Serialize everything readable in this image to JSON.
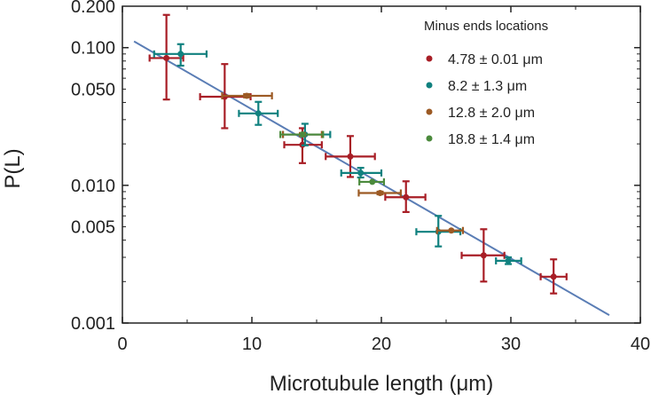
{
  "chart_data": {
    "type": "scatter",
    "xlabel": "Microtubule length (μm)",
    "ylabel": "P(L)",
    "xlim": [
      0,
      40
    ],
    "ylim": [
      0.001,
      0.2
    ],
    "yscale": "log",
    "grid": false,
    "x_ticks": [
      "0",
      "10",
      "20",
      "30",
      "40"
    ],
    "y_ticks": [
      "0.001",
      "0.005",
      "0.010",
      "0.050",
      "0.100",
      "0.200"
    ],
    "legend": {
      "title": "Minus ends locations",
      "placement": "top-right"
    },
    "series": [
      {
        "name": "4.78 ± 0.01 μm",
        "color": "#a81e26",
        "points": [
          {
            "x": 3.4,
            "y": 0.084,
            "xerr": [
              2.1,
              4.7
            ],
            "yerr": [
              0.042,
              0.173
            ]
          },
          {
            "x": 7.9,
            "y": 0.044,
            "xerr": [
              6.0,
              9.9
            ],
            "yerr": [
              0.026,
              0.076
            ]
          },
          {
            "x": 13.9,
            "y": 0.0197,
            "xerr": [
              12.5,
              15.4
            ],
            "yerr": [
              0.0145,
              0.026
            ]
          },
          {
            "x": 17.6,
            "y": 0.0162,
            "xerr": [
              15.7,
              19.5
            ],
            "yerr": [
              0.0115,
              0.0228
            ]
          },
          {
            "x": 21.9,
            "y": 0.0082,
            "xerr": [
              20.3,
              23.4
            ],
            "yerr": [
              0.0064,
              0.0107
            ]
          },
          {
            "x": 27.9,
            "y": 0.0031,
            "xerr": [
              26.2,
              29.5
            ],
            "yerr": [
              0.002,
              0.0048
            ]
          },
          {
            "x": 33.3,
            "y": 0.00217,
            "xerr": [
              32.3,
              34.3
            ],
            "yerr": [
              0.00164,
              0.0029
            ]
          }
        ]
      },
      {
        "name": "8.2 ± 1.3 μm",
        "color": "#10817f",
        "points": [
          {
            "x": 4.5,
            "y": 0.09,
            "xerr": [
              2.45,
              6.5
            ],
            "yerr": [
              0.074,
              0.106
            ]
          },
          {
            "x": 10.5,
            "y": 0.0333,
            "xerr": [
              9.0,
              12.0
            ],
            "yerr": [
              0.0275,
              0.0404
            ]
          },
          {
            "x": 14.1,
            "y": 0.0234,
            "xerr": [
              12.4,
              16.05
            ],
            "yerr": [
              0.0195,
              0.028
            ]
          },
          {
            "x": 18.4,
            "y": 0.0123,
            "xerr": [
              16.9,
              20.0
            ],
            "yerr": [
              0.0114,
              0.0134
            ]
          },
          {
            "x": 24.4,
            "y": 0.0046,
            "xerr": [
              22.7,
              26.1
            ],
            "yerr": [
              0.0036,
              0.006
            ]
          },
          {
            "x": 29.8,
            "y": 0.00283,
            "xerr": [
              28.85,
              30.8
            ],
            "yerr": [
              0.00268,
              0.003
            ]
          }
        ]
      },
      {
        "name": "12.8 ± 2.0 μm",
        "color": "#9c5a24",
        "points": [
          {
            "x": 9.6,
            "y": 0.0447,
            "xerr": [
              7.7,
              11.55
            ],
            "yerr": [
              0.0435,
              0.046
            ]
          },
          {
            "x": 13.9,
            "y": 0.0234,
            "xerr": [
              12.4,
              15.4
            ],
            "yerr": [
              0.0228,
              0.024
            ]
          },
          {
            "x": 19.9,
            "y": 0.0088,
            "xerr": [
              18.25,
              21.5
            ],
            "yerr": [
              0.0086,
              0.009
            ]
          },
          {
            "x": 25.4,
            "y": 0.0047,
            "xerr": [
              24.3,
              26.3
            ],
            "yerr": [
              0.0046,
              0.0048
            ]
          }
        ]
      },
      {
        "name": "18.8 ± 1.4 μm",
        "color": "#4b8a3c",
        "points": [
          {
            "x": 13.9,
            "y": 0.0234,
            "xerr": [
              12.2,
              15.5
            ],
            "yerr": [
              0.0229,
              0.0239
            ]
          },
          {
            "x": 19.3,
            "y": 0.0106,
            "xerr": [
              18.3,
              20.2
            ],
            "yerr": [
              0.0104,
              0.0108
            ]
          }
        ]
      }
    ],
    "fit_line": {
      "color": "#5a7db5",
      "x": [
        0.9,
        37.6
      ],
      "y": [
        0.111,
        0.00114
      ]
    }
  }
}
